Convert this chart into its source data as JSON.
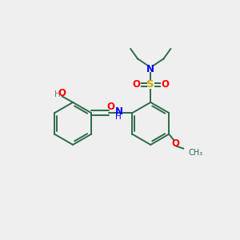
{
  "background_color": "#efefef",
  "bond_color": "#2d6b4a",
  "atom_colors": {
    "O": "#ff0000",
    "N": "#0000ff",
    "S": "#ccaa00",
    "H": "#5a8a6a",
    "C": "#2d6b4a"
  },
  "figsize": [
    3.0,
    3.0
  ],
  "dpi": 100
}
